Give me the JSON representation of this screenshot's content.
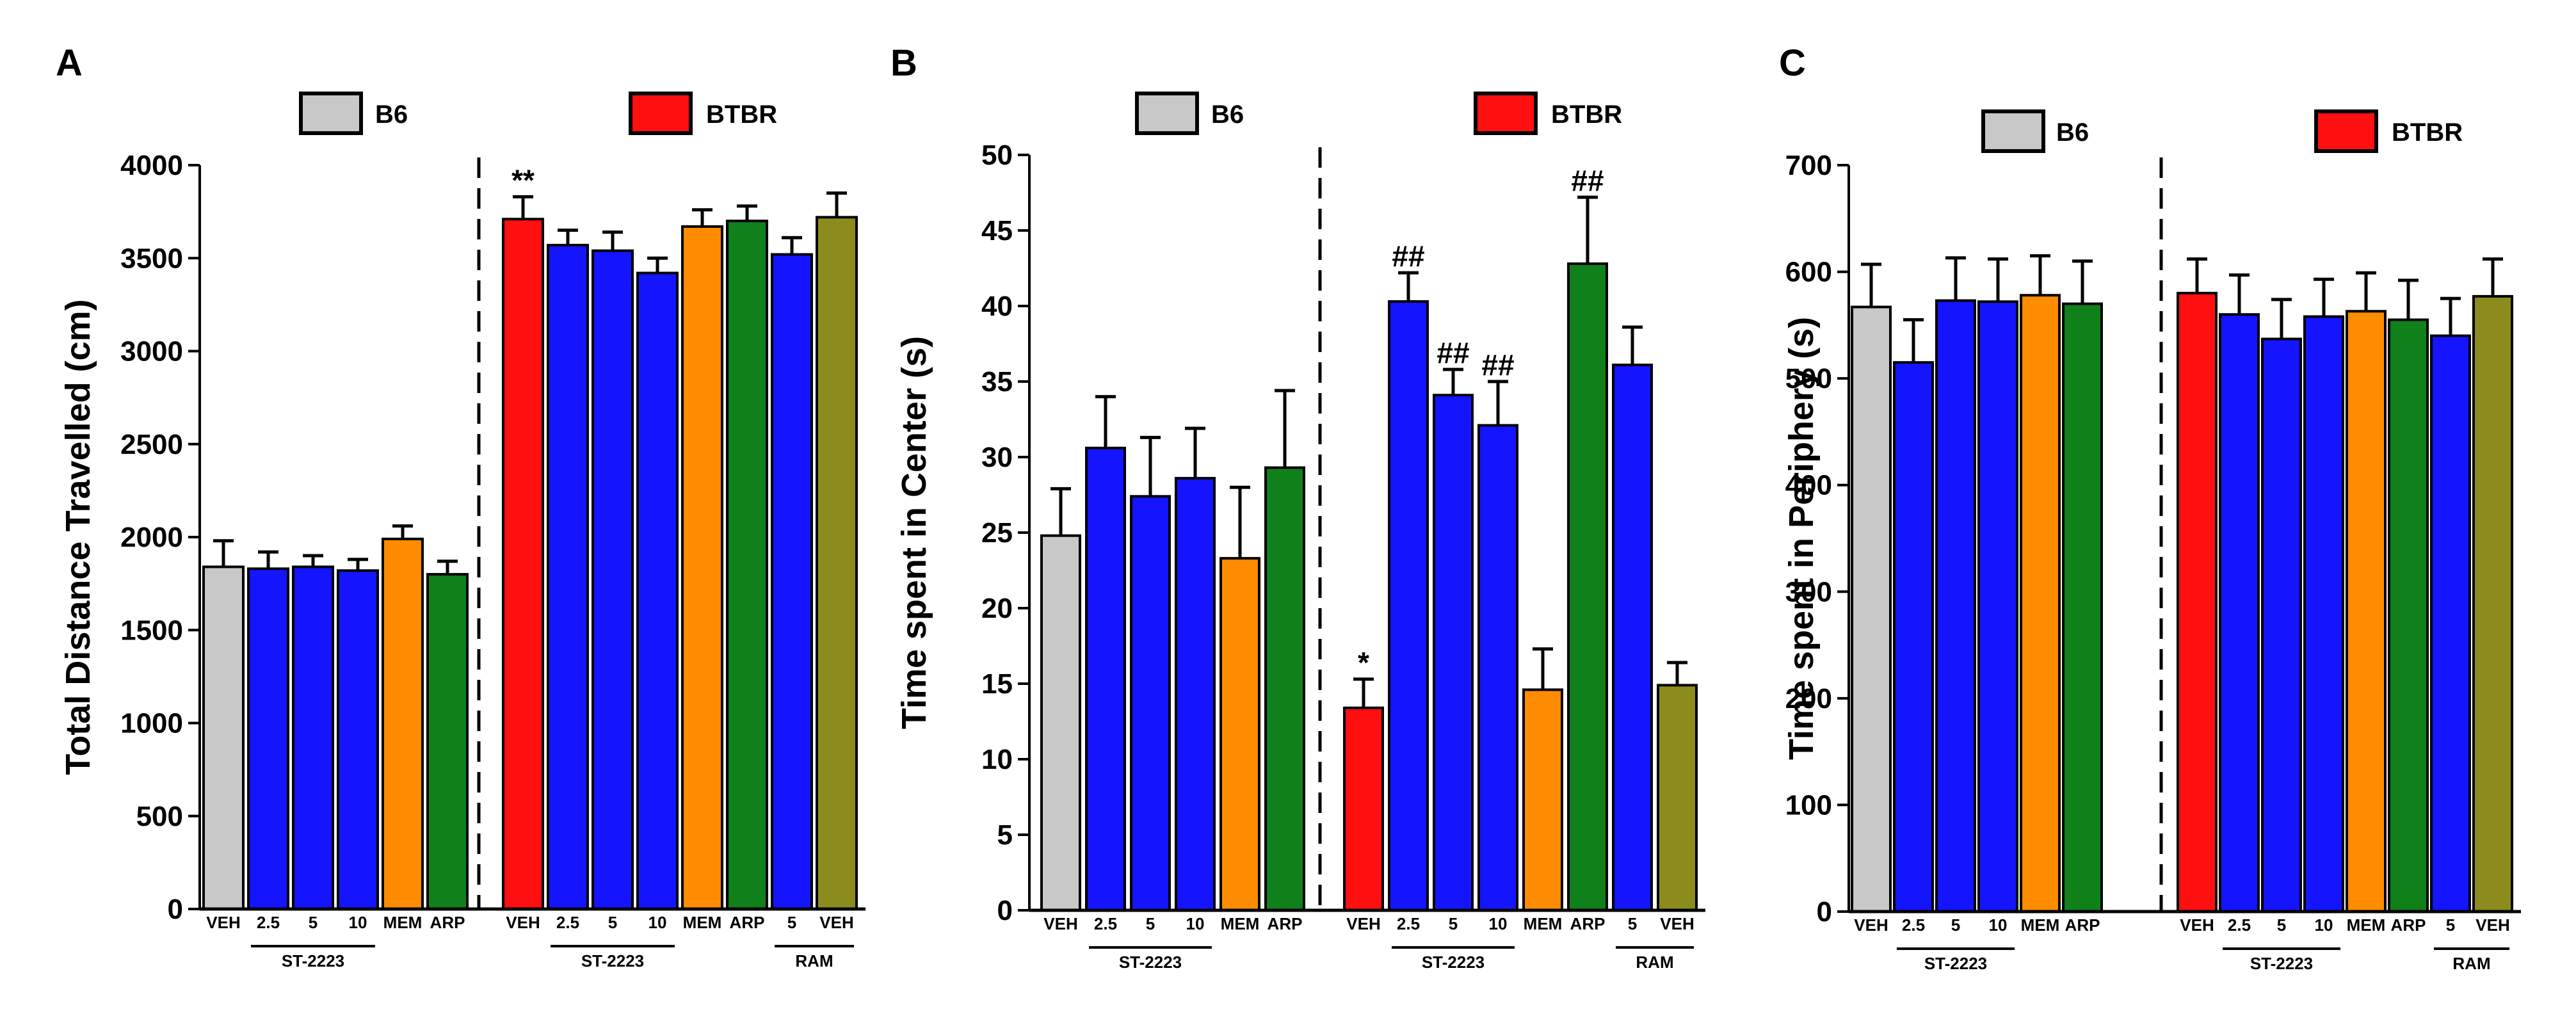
{
  "colors": {
    "gray": "#c8c8c8",
    "blue": "#1414ff",
    "red": "#ff0f0f",
    "orange": "#ff8c00",
    "green": "#10801a",
    "olive": "#8c8c1e"
  },
  "chart_data": [
    {
      "type": "bar",
      "panel": "A",
      "ylabel": "Total Distance Travelled (cm)",
      "ylim": [
        0,
        4000
      ],
      "yticks": [
        "0",
        "500",
        "1000",
        "1500",
        "2000",
        "2500",
        "3000",
        "3500",
        "4000"
      ],
      "legend": [
        {
          "label": "B6",
          "color": "gray"
        },
        {
          "label": "BTBR",
          "color": "red"
        }
      ],
      "groups": [
        {
          "name": "B6",
          "categories": [
            "VEH",
            "2.5",
            "5",
            "10",
            "MEM",
            "ARP"
          ],
          "values": [
            1840,
            1830,
            1840,
            1820,
            1990,
            1800
          ],
          "errors": [
            140,
            90,
            60,
            60,
            70,
            70
          ],
          "colors": [
            "gray",
            "blue",
            "blue",
            "blue",
            "orange",
            "green"
          ],
          "annotations": [
            "",
            "",
            "",
            "",
            "",
            ""
          ],
          "brackets": [
            {
              "label": "ST-2223",
              "from": 1,
              "to": 3
            }
          ]
        },
        {
          "name": "BTBR",
          "categories": [
            "VEH",
            "2.5",
            "5",
            "10",
            "MEM",
            "ARP",
            "5",
            "VEH"
          ],
          "values": [
            3710,
            3570,
            3540,
            3420,
            3670,
            3700,
            3520,
            3720
          ],
          "errors": [
            120,
            80,
            100,
            80,
            90,
            80,
            90,
            130
          ],
          "colors": [
            "red",
            "blue",
            "blue",
            "blue",
            "orange",
            "green",
            "blue",
            "olive"
          ],
          "annotations": [
            "**",
            "",
            "",
            "",
            "",
            "",
            "",
            ""
          ],
          "brackets": [
            {
              "label": "ST-2223",
              "from": 1,
              "to": 3
            },
            {
              "label": "RAM",
              "from": 6,
              "to": 7
            }
          ]
        }
      ]
    },
    {
      "type": "bar",
      "panel": "B",
      "ylabel": "Time spent in Center (s)",
      "ylim": [
        0,
        50
      ],
      "yticks": [
        "0",
        "5",
        "10",
        "15",
        "20",
        "25",
        "30",
        "35",
        "40",
        "45",
        "50"
      ],
      "legend": [
        {
          "label": "B6",
          "color": "gray"
        },
        {
          "label": "BTBR",
          "color": "red"
        }
      ],
      "groups": [
        {
          "name": "B6",
          "categories": [
            "VEH",
            "2.5",
            "5",
            "10",
            "MEM",
            "ARP"
          ],
          "values": [
            24.8,
            30.6,
            27.4,
            28.6,
            23.3,
            29.3
          ],
          "errors": [
            3.1,
            3.4,
            3.9,
            3.3,
            4.7,
            5.1
          ],
          "colors": [
            "gray",
            "blue",
            "blue",
            "blue",
            "orange",
            "green"
          ],
          "annotations": [
            "",
            "",
            "",
            "",
            "",
            ""
          ],
          "brackets": [
            {
              "label": "ST-2223",
              "from": 1,
              "to": 3
            }
          ]
        },
        {
          "name": "BTBR",
          "categories": [
            "VEH",
            "2.5",
            "5",
            "10",
            "MEM",
            "ARP",
            "5",
            "VEH"
          ],
          "values": [
            13.4,
            40.3,
            34.1,
            32.1,
            14.6,
            42.8,
            36.1,
            14.9
          ],
          "errors": [
            1.9,
            1.9,
            1.7,
            2.9,
            2.7,
            4.4,
            2.5,
            1.5
          ],
          "colors": [
            "red",
            "blue",
            "blue",
            "blue",
            "orange",
            "green",
            "blue",
            "olive"
          ],
          "annotations": [
            "*",
            "##",
            "##",
            "##",
            "",
            "##",
            "",
            ""
          ],
          "brackets": [
            {
              "label": "ST-2223",
              "from": 1,
              "to": 3
            },
            {
              "label": "RAM",
              "from": 6,
              "to": 7
            }
          ]
        }
      ]
    },
    {
      "type": "bar",
      "panel": "C",
      "ylabel": "Time spent in Periphery (s)",
      "ylim": [
        0,
        700
      ],
      "yticks": [
        "0",
        "100",
        "200",
        "300",
        "400",
        "500",
        "600",
        "700"
      ],
      "legend": [
        {
          "label": "B6",
          "color": "gray"
        },
        {
          "label": "BTBR",
          "color": "red"
        }
      ],
      "groups": [
        {
          "name": "B6",
          "categories": [
            "VEH",
            "2.5",
            "5",
            "10",
            "MEM",
            "ARP"
          ],
          "values": [
            567,
            515,
            573,
            572,
            578,
            570
          ],
          "errors": [
            40,
            40,
            40,
            40,
            37,
            40
          ],
          "colors": [
            "gray",
            "blue",
            "blue",
            "blue",
            "orange",
            "green"
          ],
          "annotations": [
            "",
            "",
            "",
            "",
            "",
            ""
          ],
          "brackets": [
            {
              "label": "ST-2223",
              "from": 1,
              "to": 3
            }
          ]
        },
        {
          "name": "BTBR",
          "categories": [
            "VEH",
            "2.5",
            "5",
            "10",
            "MEM",
            "ARP",
            "5",
            "VEH"
          ],
          "values": [
            580,
            560,
            537,
            558,
            563,
            555,
            540,
            577
          ],
          "errors": [
            32,
            37,
            37,
            35,
            36,
            37,
            35,
            35
          ],
          "colors": [
            "red",
            "blue",
            "blue",
            "blue",
            "orange",
            "green",
            "blue",
            "olive"
          ],
          "annotations": [
            "",
            "",
            "",
            "",
            "",
            "",
            "",
            ""
          ],
          "brackets": [
            {
              "label": "ST-2223",
              "from": 1,
              "to": 3
            },
            {
              "label": "RAM",
              "from": 6,
              "to": 7
            }
          ]
        }
      ]
    }
  ]
}
